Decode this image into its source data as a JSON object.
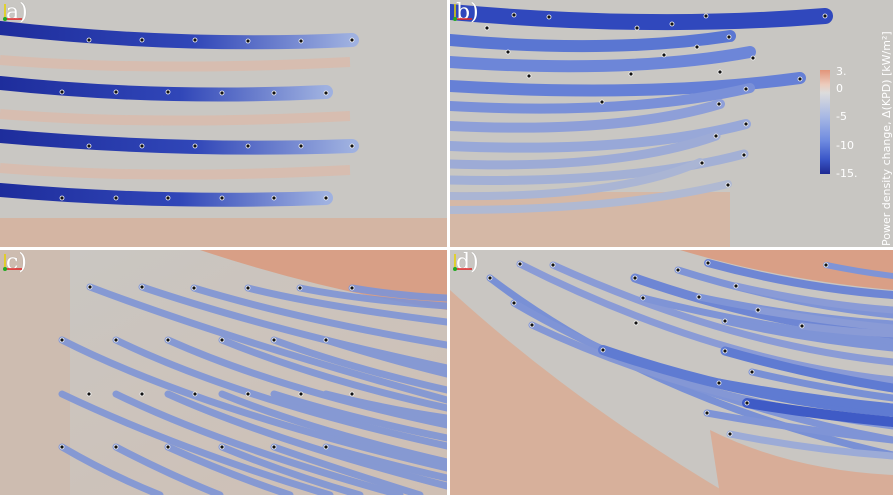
{
  "panels": [
    {
      "label": "a)"
    },
    {
      "label": "b)"
    },
    {
      "label": "c)"
    },
    {
      "label": "d)"
    }
  ],
  "colorbar": {
    "title": "Power density change, Δ(KPD) [kW/m²]",
    "ticks": [
      "3.",
      "0",
      "-5",
      "-10",
      "-15."
    ],
    "colors": [
      "#e2957a",
      "#dcdcdc",
      "#6f8be0",
      "#1f2a92"
    ]
  },
  "icons": {
    "axes": "axes-triad-icon"
  }
}
